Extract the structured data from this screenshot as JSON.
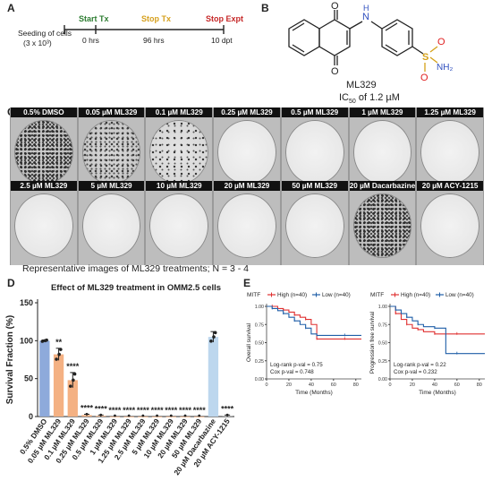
{
  "panel_letters": {
    "a": "A",
    "b": "B",
    "c": "C",
    "d": "D",
    "e": "E"
  },
  "panel_a": {
    "seeding_line1": "Seeding of cells",
    "seeding_line2": "(3 x 10³)",
    "start_label": "Start Tx",
    "stop_tx_label": "Stop Tx",
    "stop_expt_label": "Stop Expt",
    "t0": "0 hrs",
    "t96": "96 hrs",
    "t10": "10 dpt",
    "colors": {
      "start": "#2e7d32",
      "stop_tx": "#d6a01e",
      "stop_expt": "#c62828"
    }
  },
  "panel_b": {
    "compound": "ML329",
    "ic50_prefix": "IC",
    "ic50_sub": "50",
    "ic50_suffix": " of 1.2 µM",
    "atom_o1": "O",
    "atom_o2": "O",
    "atom_n": "N",
    "atom_h": "H",
    "atom_s": "S",
    "atom_nh2": "NH₂",
    "atom_o3": "O",
    "atom_o4": "O"
  },
  "panel_c": {
    "row1": [
      {
        "label": "0.5% DMSO",
        "density": "heavy"
      },
      {
        "label": "0.05 µM ML329",
        "density": "medium"
      },
      {
        "label": "0.1 µM ML329",
        "density": "light"
      },
      {
        "label": "0.25 µM ML329",
        "density": "clear"
      },
      {
        "label": "0.5 µM ML329",
        "density": "clear"
      },
      {
        "label": "1 µM ML329",
        "density": "clear"
      },
      {
        "label": "1.25 µM ML329",
        "density": "clear"
      }
    ],
    "row2": [
      {
        "label": "2.5 µM ML329",
        "density": "clear"
      },
      {
        "label": "5 µM ML329",
        "density": "clear"
      },
      {
        "label": "10 µM ML329",
        "density": "clear"
      },
      {
        "label": "20 µM ML329",
        "density": "clear"
      },
      {
        "label": "50 µM ML329",
        "density": "clear"
      },
      {
        "label": "20 µM Dacarbazine",
        "density": "heavy"
      },
      {
        "label": "20 µM ACY-1215",
        "density": "clear"
      }
    ],
    "caption": "Representative images of ML329 treatments; N = 3 - 4"
  },
  "chart_data": [
    {
      "type": "bar",
      "title": "Effect of ML329 treatment in OMM2.5 cells",
      "xlabel": "",
      "ylabel": "Survival Fraction (%)",
      "ylim": [
        0,
        150
      ],
      "yticks": [
        0,
        50,
        100,
        150
      ],
      "categories": [
        "0.5% DMSO",
        "0.05 µM ML329",
        "0.1 µM ML329",
        "0.25 µM ML329",
        "0.5 µM ML329",
        "1 µM ML329",
        "1.25 µM ML329",
        "2.5 µM ML329",
        "5 µM ML329",
        "10 µM ML329",
        "20 µM ML329",
        "50 µM ML329",
        "20 µM Dacarbazine",
        "20 µM ACY-1215"
      ],
      "values": [
        100,
        82,
        48,
        2,
        1,
        0,
        0,
        0,
        0,
        0,
        0,
        0,
        105,
        1
      ],
      "errors": [
        1,
        8,
        10,
        1,
        1,
        0,
        0,
        0,
        0,
        0,
        0,
        0,
        7,
        1
      ],
      "significance": [
        "",
        "**",
        "****",
        "****",
        "****",
        "****",
        "****",
        "****",
        "****",
        "****",
        "****",
        "****",
        "",
        "****"
      ],
      "bar_colors": [
        "#8eaadb",
        "#f4b183",
        "#f4b183",
        "#f4b183",
        "#f4b183",
        "#f4b183",
        "#f4b183",
        "#f4b183",
        "#f4b183",
        "#f4b183",
        "#f4b183",
        "#f4b183",
        "#bdd7ee",
        "#a6a6a6"
      ]
    },
    {
      "type": "line",
      "title": "",
      "legend_title": "MITF",
      "series": [
        {
          "name": "High (n=40)",
          "color": "#e03131",
          "x": [
            0,
            5,
            10,
            15,
            20,
            25,
            30,
            35,
            40,
            45,
            50,
            70,
            85
          ],
          "y": [
            1.0,
            1.0,
            0.97,
            0.95,
            0.92,
            0.88,
            0.85,
            0.82,
            0.75,
            0.55,
            0.55,
            0.55,
            0.55
          ]
        },
        {
          "name": "Low (n=40)",
          "color": "#1f5fa8",
          "x": [
            0,
            5,
            10,
            15,
            20,
            25,
            30,
            35,
            40,
            45,
            50,
            70,
            85
          ],
          "y": [
            1.0,
            0.97,
            0.94,
            0.9,
            0.85,
            0.8,
            0.75,
            0.7,
            0.62,
            0.6,
            0.6,
            0.6,
            0.6
          ]
        }
      ],
      "xlabel": "Time (Months)",
      "ylabel": "Overall survival",
      "xlim": [
        0,
        85
      ],
      "ylim": [
        0,
        1
      ],
      "xticks": [
        0,
        20,
        40,
        60,
        80
      ],
      "yticks": [
        0.0,
        0.25,
        0.5,
        0.75,
        1.0
      ],
      "annotations": [
        "Log-rank p-val = 0.75",
        "Cox p-val = 0.748"
      ]
    },
    {
      "type": "line",
      "title": "",
      "legend_title": "MITF",
      "series": [
        {
          "name": "High (n=40)",
          "color": "#e03131",
          "x": [
            0,
            5,
            10,
            15,
            20,
            25,
            30,
            40,
            50,
            60,
            70,
            85
          ],
          "y": [
            1.0,
            0.9,
            0.82,
            0.75,
            0.7,
            0.68,
            0.65,
            0.62,
            0.62,
            0.62,
            0.62,
            0.62
          ]
        },
        {
          "name": "Low (n=40)",
          "color": "#1f5fa8",
          "x": [
            0,
            5,
            10,
            15,
            20,
            25,
            30,
            40,
            50,
            60,
            70,
            85
          ],
          "y": [
            1.0,
            0.95,
            0.9,
            0.85,
            0.8,
            0.75,
            0.72,
            0.7,
            0.35,
            0.35,
            0.35,
            0.35
          ]
        }
      ],
      "xlabel": "Time (Months)",
      "ylabel": "Progression free survival",
      "xlim": [
        0,
        85
      ],
      "ylim": [
        0,
        1
      ],
      "xticks": [
        0,
        20,
        40,
        60,
        80
      ],
      "yticks": [
        0.0,
        0.25,
        0.5,
        0.75,
        1.0
      ],
      "annotations": [
        "Log-rank p-val = 0.22",
        "Cox p-val = 0.232"
      ]
    }
  ]
}
